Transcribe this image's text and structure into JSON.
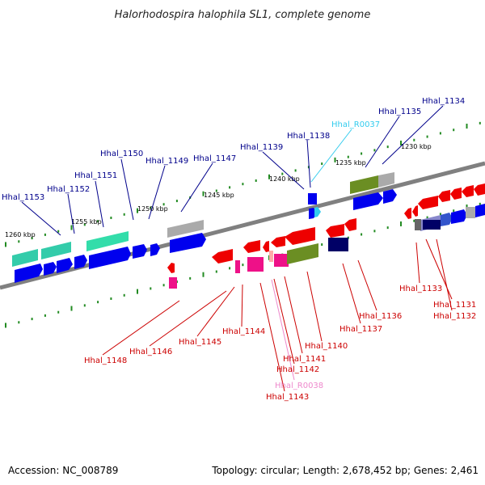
{
  "title": "Halorhodospira halophila SL1, complete genome",
  "footer": {
    "accession": "Accession: NC_008789",
    "info": "Topology: circular; Length: 2,678,452 bp; Genes: 2,461"
  },
  "colors": {
    "label_top": "#00008b",
    "label_bottom": "#cc0000",
    "label_rna": "#33ccee",
    "label_rna_pink": "#ee88cc",
    "backbone": "#808080",
    "tick": "#228b22"
  },
  "scale_labels": [
    "1230 kbp",
    "1235 kbp",
    "1240 kbp",
    "1245 kbp",
    "1250 kbp",
    "1255 kbp",
    "1260 kbp"
  ],
  "top_labels": [
    "Hhal_1134",
    "Hhal_1135",
    "Hhal_R0037",
    "Hhal_1138",
    "Hhal_1139",
    "Hhal_1147",
    "Hhal_1149",
    "Hhal_1150",
    "Hhal_1151",
    "Hhal_1152",
    "Hhal_1153"
  ],
  "bottom_labels": [
    "Hhal_1133",
    "Hhal_1131",
    "Hhal_1132",
    "Hhal_1136",
    "Hhal_1137",
    "Hhal_1140",
    "Hhal_1141",
    "Hhal_1142",
    "Hhal_R0038",
    "Hhal_1143",
    "Hhal_1144",
    "Hhal_1145",
    "Hhal_1146",
    "Hhal_1148"
  ]
}
